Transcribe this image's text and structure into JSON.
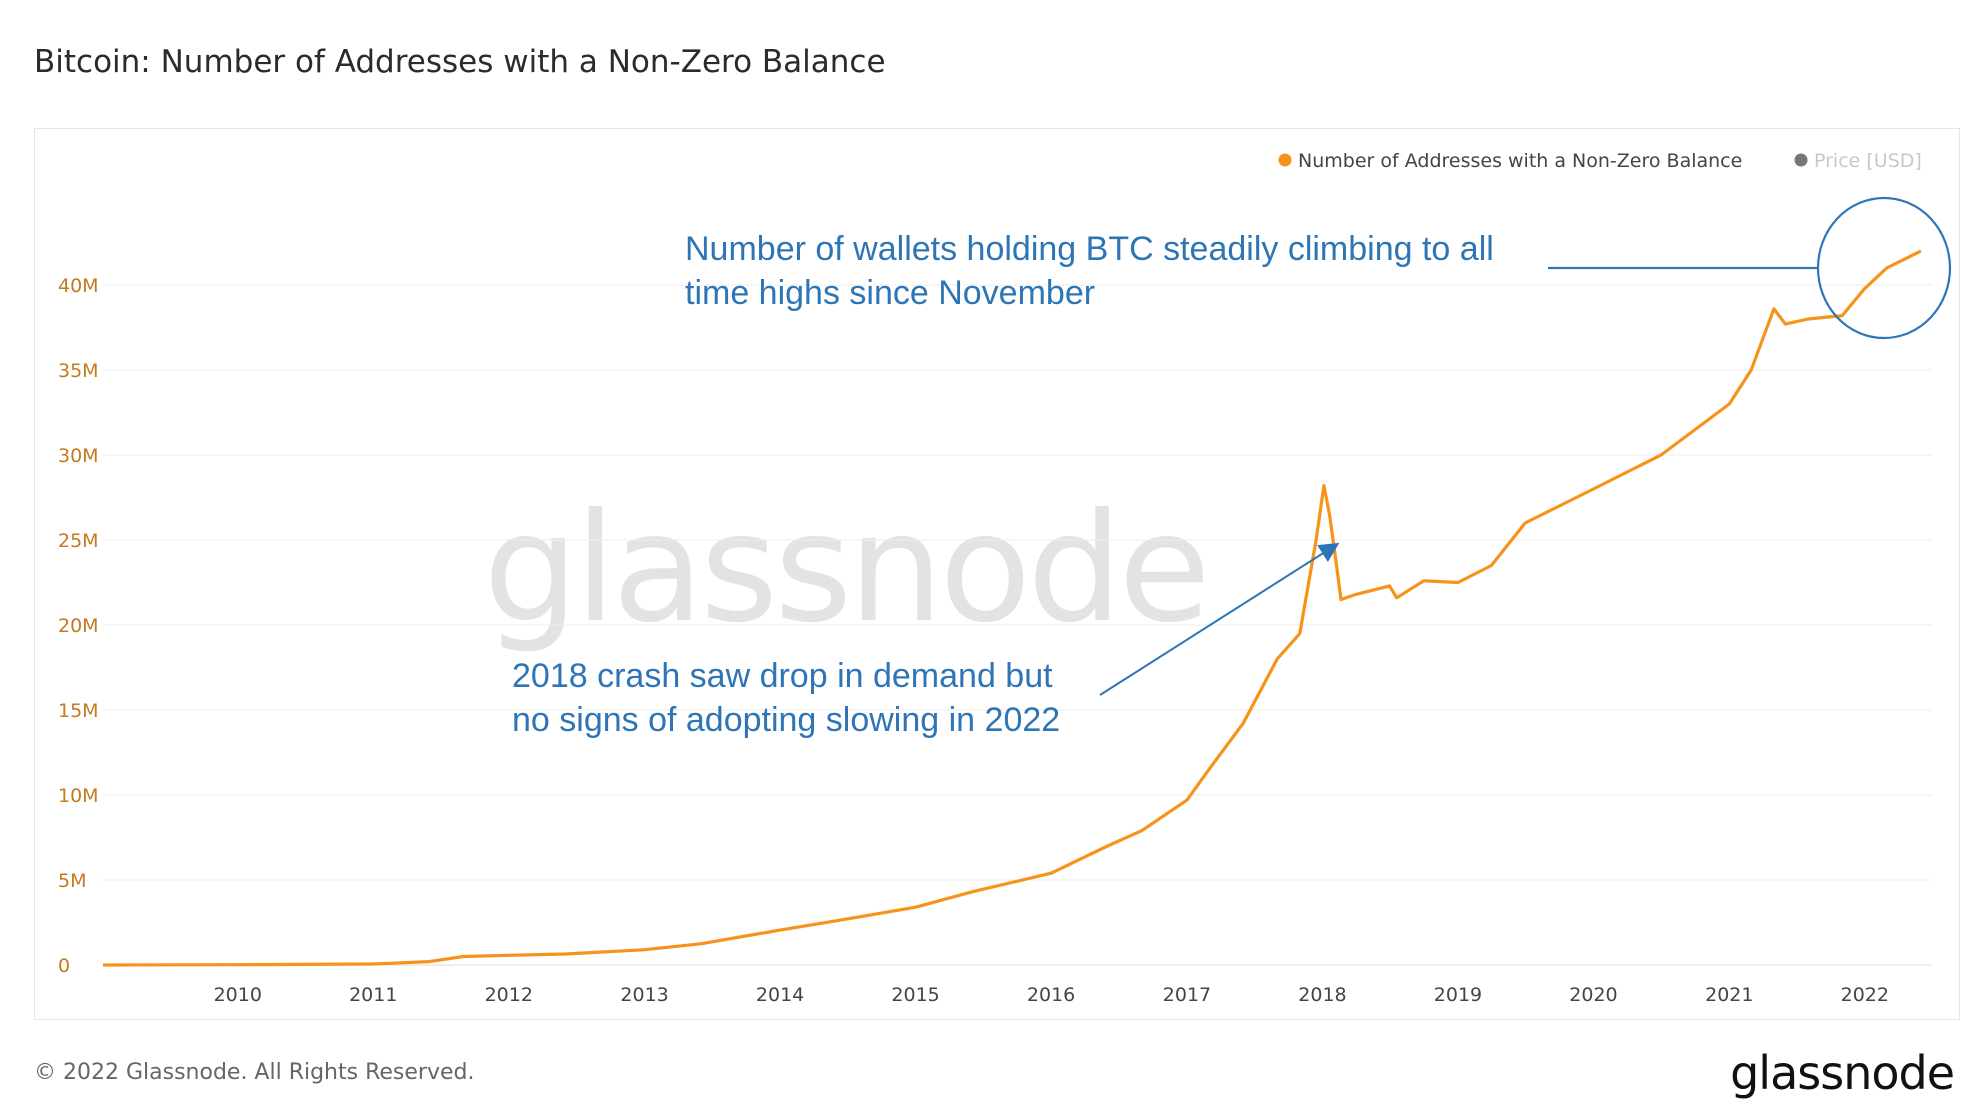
{
  "title": "Bitcoin: Number of Addresses with a Non-Zero Balance",
  "footer": "© 2022 Glassnode. All Rights Reserved.",
  "brand": "glassnode",
  "watermark": "glassnode",
  "annotations": {
    "top_line1": "Number of wallets holding BTC steadily climbing to all",
    "top_line2": "time highs since November",
    "mid_line1": "2018 crash saw drop in demand but",
    "mid_line2": "no signs of adopting slowing in 2022"
  },
  "colors": {
    "series": "#f7931a",
    "price": "#777777",
    "annotation": "#2e75b6",
    "axis_label": "#c47a1e"
  },
  "chart_data": {
    "type": "line",
    "title": "Bitcoin: Number of Addresses with a Non-Zero Balance",
    "legend": [
      {
        "name": "Number of Addresses with a Non-Zero Balance",
        "color": "#f7931a"
      },
      {
        "name": "Price [USD]",
        "color": "#777777",
        "disabled": true
      }
    ],
    "legend_position": "top-right",
    "y_ticks": [
      "0",
      "5M",
      "10M",
      "15M",
      "20M",
      "25M",
      "30M",
      "35M",
      "40M"
    ],
    "x_ticks": [
      "2010",
      "2011",
      "2012",
      "2013",
      "2014",
      "2015",
      "2016",
      "2017",
      "2018",
      "2019",
      "2020",
      "2021",
      "2022"
    ],
    "ylim": [
      0,
      45000000
    ],
    "xlim": [
      "2009-01-03",
      "2022-07-01"
    ],
    "grid": true,
    "series": [
      {
        "name": "Number of Addresses with a Non-Zero Balance",
        "points": [
          [
            "2009-01-03",
            0
          ],
          [
            "2010-01-01",
            20000
          ],
          [
            "2011-01-01",
            60000
          ],
          [
            "2011-06-01",
            200000
          ],
          [
            "2011-09-01",
            500000
          ],
          [
            "2012-01-01",
            570000
          ],
          [
            "2012-06-01",
            650000
          ],
          [
            "2013-01-01",
            900000
          ],
          [
            "2013-06-01",
            1250000
          ],
          [
            "2014-01-01",
            2050000
          ],
          [
            "2014-06-01",
            2600000
          ],
          [
            "2015-01-01",
            3400000
          ],
          [
            "2015-06-01",
            4300000
          ],
          [
            "2016-01-01",
            5400000
          ],
          [
            "2016-06-01",
            7000000
          ],
          [
            "2016-09-01",
            7900000
          ],
          [
            "2017-01-01",
            9700000
          ],
          [
            "2017-03-01",
            11500000
          ],
          [
            "2017-06-01",
            14200000
          ],
          [
            "2017-09-01",
            18000000
          ],
          [
            "2017-11-01",
            19500000
          ],
          [
            "2017-12-15",
            25000000
          ],
          [
            "2018-01-05",
            28200000
          ],
          [
            "2018-01-20",
            26500000
          ],
          [
            "2018-02-05",
            24000000
          ],
          [
            "2018-02-20",
            21500000
          ],
          [
            "2018-04-01",
            21800000
          ],
          [
            "2018-07-01",
            22300000
          ],
          [
            "2018-07-20",
            21600000
          ],
          [
            "2018-10-01",
            22600000
          ],
          [
            "2019-01-01",
            22500000
          ],
          [
            "2019-04-01",
            23500000
          ],
          [
            "2019-07-01",
            26000000
          ],
          [
            "2019-10-01",
            27000000
          ],
          [
            "2020-01-01",
            28000000
          ],
          [
            "2020-04-01",
            29000000
          ],
          [
            "2020-07-01",
            30000000
          ],
          [
            "2020-10-01",
            31500000
          ],
          [
            "2021-01-01",
            33000000
          ],
          [
            "2021-03-01",
            35000000
          ],
          [
            "2021-05-01",
            38600000
          ],
          [
            "2021-06-01",
            37700000
          ],
          [
            "2021-08-01",
            38000000
          ],
          [
            "2021-11-01",
            38200000
          ],
          [
            "2022-01-01",
            39800000
          ],
          [
            "2022-03-01",
            41000000
          ],
          [
            "2022-06-01",
            42000000
          ]
        ]
      }
    ]
  }
}
